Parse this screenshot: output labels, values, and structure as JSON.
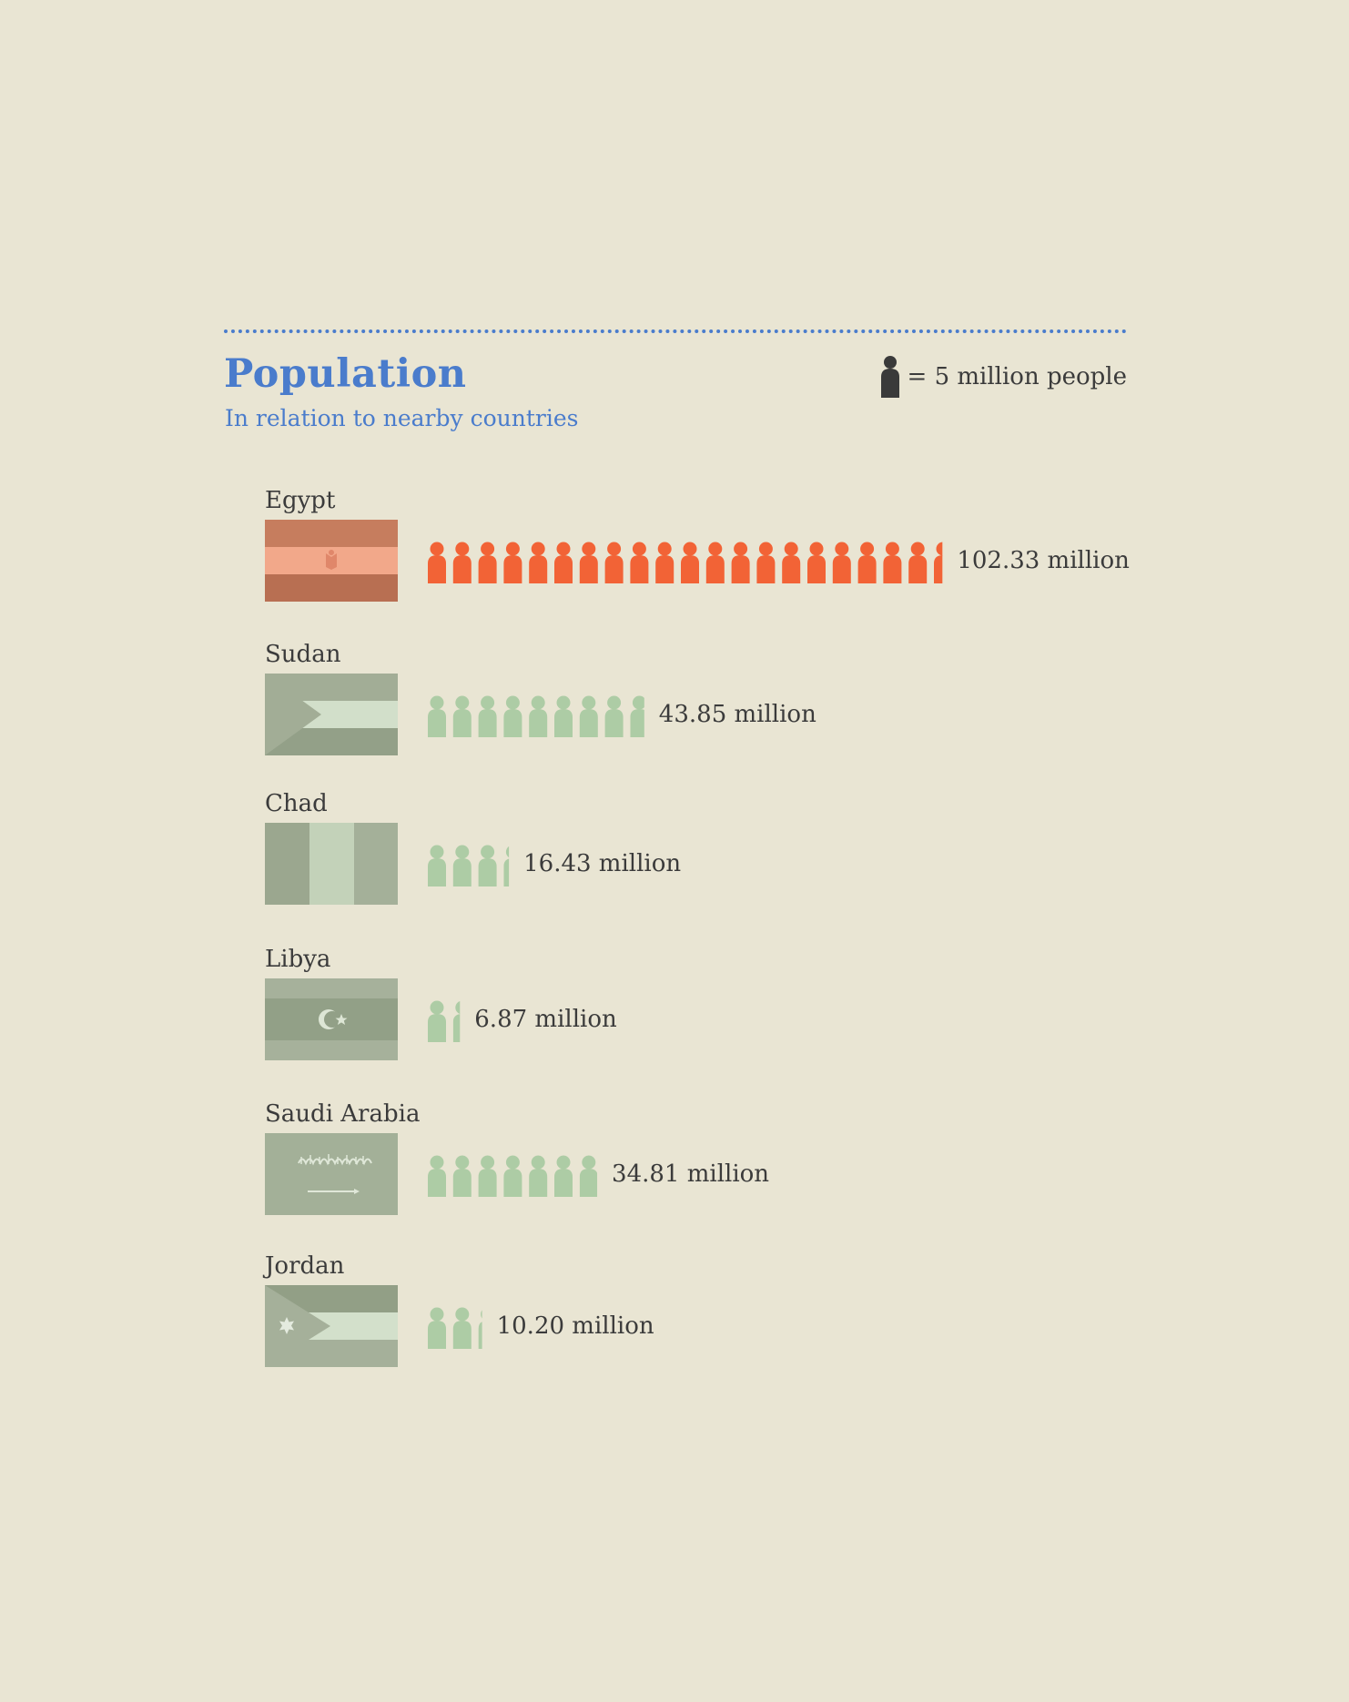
{
  "header": {
    "title": "Population",
    "subtitle": "In relation to nearby countries",
    "legend_text": "= 5 million people",
    "legend_icon": "person-icon"
  },
  "colors": {
    "accent": "#4a7ccc",
    "highlight": "#f26336",
    "muted": "#adcca5",
    "legend_icon": "#3a3a3a",
    "background": "#e9e5d3",
    "text": "#3b3b3b"
  },
  "chart_data": {
    "type": "pictogram",
    "title": "Population",
    "subtitle": "In relation to nearby countries",
    "unit": "million",
    "icon_value": 5,
    "categories": [
      "Egypt",
      "Sudan",
      "Chad",
      "Libya",
      "Saudi Arabia",
      "Jordan"
    ],
    "values": [
      102.33,
      43.85,
      16.43,
      6.87,
      34.81,
      10.2
    ],
    "labels": [
      "102.33 million",
      "43.85 million",
      "16.43 million",
      "6.87 million",
      "34.81 million",
      "10.20 million"
    ],
    "highlight": "Egypt"
  },
  "countries": [
    {
      "name": "Egypt",
      "value_label": "102.33 million",
      "flag": "egypt-flag-icon"
    },
    {
      "name": "Sudan",
      "value_label": "43.85 million",
      "flag": "sudan-flag-icon"
    },
    {
      "name": "Chad",
      "value_label": "16.43 million",
      "flag": "chad-flag-icon"
    },
    {
      "name": "Libya",
      "value_label": "6.87 million",
      "flag": "libya-flag-icon"
    },
    {
      "name": "Saudi Arabia",
      "value_label": "34.81 million",
      "flag": "saudi-arabia-flag-icon"
    },
    {
      "name": "Jordan",
      "value_label": "10.20 million",
      "flag": "jordan-flag-icon"
    }
  ]
}
